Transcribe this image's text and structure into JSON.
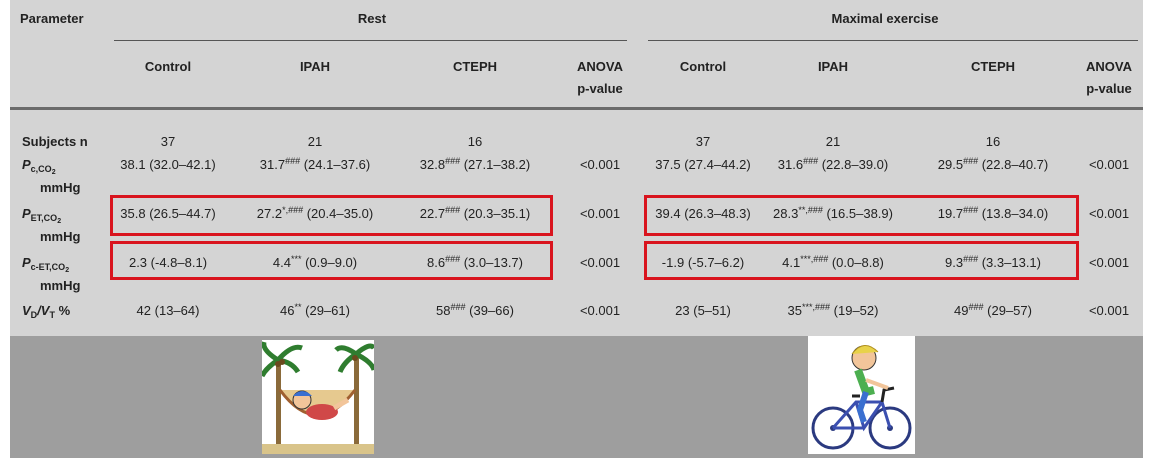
{
  "header": {
    "parameter": "Parameter",
    "rest": "Rest",
    "maximal_exercise": "Maximal exercise",
    "columns": [
      "Control",
      "IPAH",
      "CTEPH"
    ],
    "anova_line1": "ANOVA",
    "anova_line2": "p-value"
  },
  "rows": [
    {
      "label_main": "Subjects n",
      "rest": [
        {
          "v": "37"
        },
        {
          "v": "21"
        },
        {
          "v": "16"
        }
      ],
      "rest_p": "",
      "ex": [
        {
          "v": "37"
        },
        {
          "v": "21"
        },
        {
          "v": "16"
        }
      ],
      "ex_p": ""
    },
    {
      "label_main": "P",
      "label_sub": "c,CO",
      "label_sub2": "2",
      "label_unit": "mmHg",
      "rest": [
        {
          "v": "38.1",
          "sup": "",
          "r": "(32.0–42.1)"
        },
        {
          "v": "31.7",
          "sup": "###",
          "r": "(24.1–37.6)"
        },
        {
          "v": "32.8",
          "sup": "###",
          "r": "(27.1–38.2)"
        }
      ],
      "rest_p": "<0.001",
      "ex": [
        {
          "v": "37.5",
          "sup": "",
          "r": "(27.4–44.2)"
        },
        {
          "v": "31.6",
          "sup": "###",
          "r": "(22.8–39.0)"
        },
        {
          "v": "29.5",
          "sup": "###",
          "r": "(22.8–40.7)"
        }
      ],
      "ex_p": "<0.001"
    },
    {
      "label_main": "P",
      "label_sub": "ET,CO",
      "label_sub2": "2",
      "label_unit": "mmHg",
      "rest": [
        {
          "v": "35.8",
          "sup": "",
          "r": "(26.5–44.7)"
        },
        {
          "v": "27.2",
          "sup": "*,###",
          "r": "(20.4–35.0)"
        },
        {
          "v": "22.7",
          "sup": "###",
          "r": "(20.3–35.1)"
        }
      ],
      "rest_p": "<0.001",
      "ex": [
        {
          "v": "39.4",
          "sup": "",
          "r": "(26.3–48.3)"
        },
        {
          "v": "28.3",
          "sup": "**,###",
          "r": "(16.5–38.9)"
        },
        {
          "v": "19.7",
          "sup": "###",
          "r": "(13.8–34.0)"
        }
      ],
      "ex_p": "<0.001"
    },
    {
      "label_main": "P",
      "label_sub": "c-ET,CO",
      "label_sub2": "2",
      "label_unit": "mmHg",
      "rest": [
        {
          "v": "2.3",
          "sup": "",
          "r": "(-4.8–8.1)"
        },
        {
          "v": "4.4",
          "sup": "***",
          "r": "(0.9–9.0)"
        },
        {
          "v": "8.6",
          "sup": "###",
          "r": "(3.0–13.7)"
        }
      ],
      "rest_p": "<0.001",
      "ex": [
        {
          "v": "-1.9",
          "sup": "",
          "r": "(-5.7–6.2)"
        },
        {
          "v": "4.1",
          "sup": "***,###",
          "r": "(0.0–8.8)"
        },
        {
          "v": "9.3",
          "sup": "###",
          "r": "(3.3–13.1)"
        }
      ],
      "ex_p": "<0.001"
    },
    {
      "label_main": "V",
      "label_sub": "D",
      "label_mid": "/V",
      "label_sub3": "T",
      "label_tail": " %",
      "rest": [
        {
          "v": "42",
          "sup": "",
          "r": "(13–64)"
        },
        {
          "v": "46",
          "sup": "**",
          "r": "(29–61)"
        },
        {
          "v": "58",
          "sup": "###",
          "r": "(39–66)"
        }
      ],
      "rest_p": "<0.001",
      "ex": [
        {
          "v": "23",
          "sup": "",
          "r": "(5–51)"
        },
        {
          "v": "35",
          "sup": "***,###",
          "r": "(19–52)"
        },
        {
          "v": "49",
          "sup": "###",
          "r": "(29–57)"
        }
      ],
      "ex_p": "<0.001"
    }
  ],
  "illustrations": {
    "rest": "person-in-hammock-illustration",
    "exercise": "child-cycling-illustration"
  },
  "colors": {
    "panel_bg": "#d4d4d4",
    "band_bg": "#9e9e9e",
    "highlight_border": "#d9141e"
  }
}
